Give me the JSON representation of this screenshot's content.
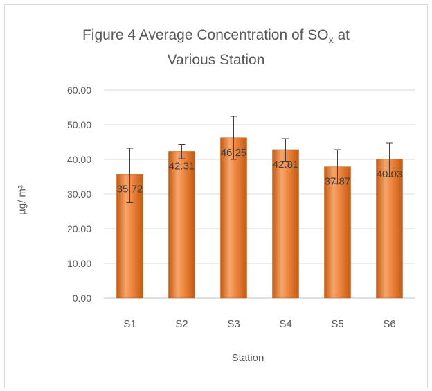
{
  "chart_data": {
    "type": "bar",
    "title_line1": "Figure 4 Average Concentration of SO",
    "title_sub": "x",
    "title_tail": " at",
    "title_line2": "Various Station",
    "xlabel": "Station",
    "ylabel": "µg/ m³",
    "categories": [
      "S1",
      "S2",
      "S3",
      "S4",
      "S5",
      "S6"
    ],
    "values": [
      35.72,
      42.31,
      46.25,
      42.81,
      37.87,
      40.03
    ],
    "value_labels": [
      "35.72",
      "42.31",
      "46.25",
      "42.81",
      "37.87",
      "40.03"
    ],
    "error_bars": [
      {
        "low": 27.5,
        "high": 43.2
      },
      {
        "low": 40.2,
        "high": 44.3
      },
      {
        "low": 40.0,
        "high": 52.4
      },
      {
        "low": 39.5,
        "high": 46.0
      },
      {
        "low": 33.0,
        "high": 42.8
      },
      {
        "low": 35.0,
        "high": 44.8
      }
    ],
    "yticks": [
      "0.00",
      "10.00",
      "20.00",
      "30.00",
      "40.00",
      "50.00",
      "60.00"
    ],
    "ylim": [
      0,
      60
    ],
    "grid": true,
    "bar_color": "#ed7d31",
    "bar_color_dark": "#c55a11"
  }
}
